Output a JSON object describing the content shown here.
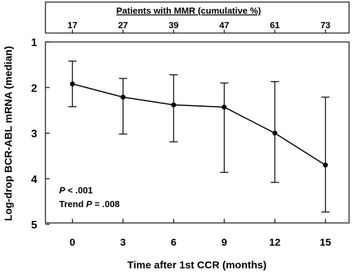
{
  "chart_data": {
    "type": "line",
    "title": "",
    "xlabel": "Time after 1st CCR (months)",
    "ylabel": "Log-drop BCR-ABL mRNA (median)",
    "x": [
      0,
      3,
      6,
      9,
      12,
      15
    ],
    "x_ticks": [
      "0",
      "3",
      "6",
      "9",
      "12",
      "15"
    ],
    "y_ticks": [
      "1",
      "2",
      "3",
      "4",
      "5"
    ],
    "xlim": [
      -1.6,
      16.4
    ],
    "ylim": [
      1,
      5
    ],
    "y_inverted": true,
    "grid": false,
    "series": [
      {
        "values": [
          1.92,
          2.21,
          2.38,
          2.43,
          3.0,
          3.7
        ],
        "error_low": [
          1.42,
          1.8,
          1.72,
          1.9,
          1.87,
          2.21
        ],
        "error_high": [
          2.42,
          3.02,
          3.19,
          3.86,
          4.08,
          4.73
        ]
      }
    ],
    "top_panel": {
      "title": "Patients with MMR (cumulative %)",
      "values": [
        "17",
        "27",
        "39",
        "47",
        "61",
        "73"
      ]
    },
    "annotations": {
      "p_label": "P",
      "p_value": " < .001",
      "trend_prefix": "Trend ",
      "trend_label": "P",
      "trend_value": " = .008"
    },
    "colors": {
      "line": "#000000",
      "marker": "#000000"
    }
  }
}
